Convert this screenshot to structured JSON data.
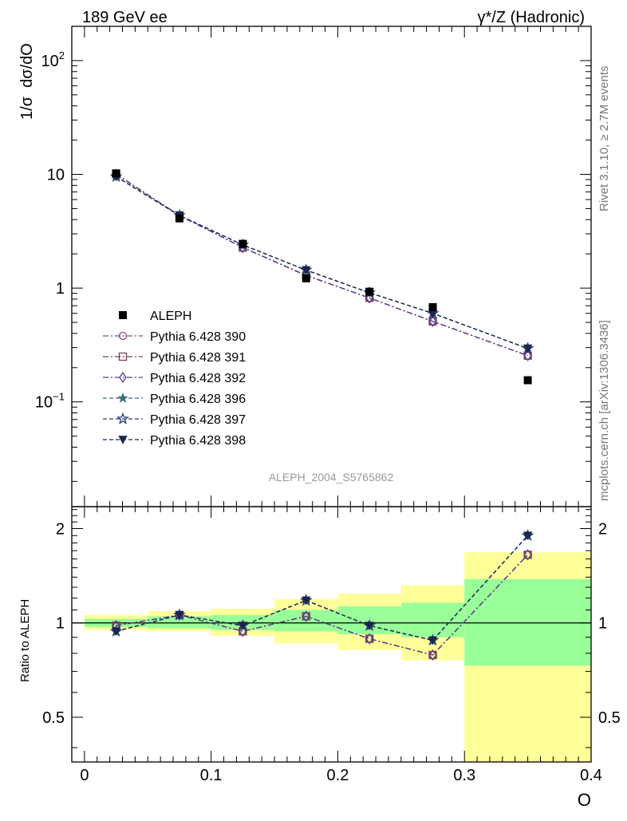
{
  "header": {
    "left_title": "189 GeV ee",
    "right_title": "γ*/Z (Hadronic)"
  },
  "side": {
    "rivet": "Rivet 3.1.10, ≥ 2.7M events",
    "mcplots": "mcplots.cern.ch [arXiv:1306.3436]"
  },
  "watermark": "ALEPH_2004_S5765862",
  "chart_data": {
    "type": "line",
    "title": "",
    "xlabel": "O",
    "ylabel": "1/σ  dσ/dO",
    "ratio_ylabel": "Ratio to ALEPH",
    "xlim": [
      -0.01,
      0.4
    ],
    "ylim": [
      0.012,
      200
    ],
    "yscale": "log",
    "ratio_ylim": [
      0.36,
      2.35
    ],
    "ratio_yscale": "log",
    "x_ticks": [
      0,
      0.1,
      0.2,
      0.3,
      0.4
    ],
    "x_tick_labels": [
      "0",
      "0.1",
      "0.2",
      "0.3",
      "0.4"
    ],
    "y_ticks": [
      {
        "value": 100,
        "base": "10",
        "exp": "2"
      },
      {
        "value": 10,
        "base": "10",
        "exp": ""
      },
      {
        "value": 1,
        "base": "1",
        "exp": ""
      },
      {
        "value": 0.1,
        "base": "10",
        "exp": "−1"
      }
    ],
    "ratio_ticks": [
      {
        "value": 2,
        "label": "2"
      },
      {
        "value": 1,
        "label": "1"
      },
      {
        "value": 0.5,
        "label": "0.5"
      }
    ],
    "bins": [
      [
        0,
        0.05
      ],
      [
        0.05,
        0.1
      ],
      [
        0.1,
        0.15
      ],
      [
        0.15,
        0.2
      ],
      [
        0.2,
        0.25
      ],
      [
        0.25,
        0.3
      ],
      [
        0.3,
        0.4
      ]
    ],
    "x": [
      0.025,
      0.075,
      0.125,
      0.175,
      0.225,
      0.275,
      0.35
    ],
    "band_stat": [
      [
        0.97,
        1.03
      ],
      [
        0.96,
        1.05
      ],
      [
        0.95,
        1.06
      ],
      [
        0.94,
        1.1
      ],
      [
        0.92,
        1.13
      ],
      [
        0.9,
        1.16
      ],
      [
        0.73,
        1.38
      ]
    ],
    "band_total": [
      [
        0.95,
        1.06
      ],
      [
        0.94,
        1.09
      ],
      [
        0.91,
        1.11
      ],
      [
        0.86,
        1.19
      ],
      [
        0.82,
        1.24
      ],
      [
        0.76,
        1.32
      ],
      [
        0.36,
        1.68
      ]
    ],
    "data": {
      "name": "ALEPH",
      "color": "#000000",
      "values": [
        10.2,
        4.1,
        2.45,
        1.22,
        0.93,
        0.68,
        0.155
      ]
    },
    "series": [
      {
        "name": "Pythia 6.428 390",
        "color": "#8b4a7e",
        "dash": "7,3,2,3",
        "marker": "circle",
        "values": [
          10.1,
          4.35,
          2.28,
          1.3,
          0.82,
          0.51,
          0.255
        ],
        "ratio": [
          0.98,
          1.06,
          0.94,
          1.05,
          0.89,
          0.79,
          1.65
        ]
      },
      {
        "name": "Pythia 6.428 391",
        "color": "#7a3f53",
        "dash": "7,3,2,3",
        "marker": "square",
        "values": [
          10.0,
          4.35,
          2.27,
          1.29,
          0.82,
          0.51,
          0.255
        ],
        "ratio": [
          0.98,
          1.06,
          0.94,
          1.05,
          0.89,
          0.79,
          1.65
        ]
      },
      {
        "name": "Pythia 6.428 392",
        "color": "#5a3a8f",
        "dash": "7,3,2,3",
        "marker": "diamond",
        "values": [
          10.0,
          4.35,
          2.27,
          1.29,
          0.82,
          0.51,
          0.255
        ],
        "ratio": [
          0.98,
          1.06,
          0.94,
          1.05,
          0.89,
          0.79,
          1.65
        ]
      },
      {
        "name": "Pythia 6.428 396",
        "color": "#3c6e7e",
        "dash": "5,3",
        "marker": "star",
        "values": [
          9.55,
          4.35,
          2.4,
          1.44,
          0.91,
          0.6,
          0.295
        ],
        "ratio": [
          0.94,
          1.06,
          0.98,
          1.18,
          0.98,
          0.88,
          1.9
        ]
      },
      {
        "name": "Pythia 6.428 397",
        "color": "#2e3f6e",
        "dash": "5,3",
        "marker": "star-open",
        "values": [
          9.55,
          4.35,
          2.4,
          1.44,
          0.91,
          0.6,
          0.295
        ],
        "ratio": [
          0.94,
          1.06,
          0.98,
          1.18,
          0.98,
          0.88,
          1.9
        ]
      },
      {
        "name": "Pythia 6.428 398",
        "color": "#1a2550",
        "dash": "5,3",
        "marker": "triangle-down",
        "values": [
          9.55,
          4.35,
          2.4,
          1.44,
          0.91,
          0.6,
          0.295
        ],
        "ratio": [
          0.94,
          1.06,
          0.98,
          1.18,
          0.98,
          0.88,
          1.9
        ]
      }
    ],
    "legend_position": "middle-left"
  }
}
